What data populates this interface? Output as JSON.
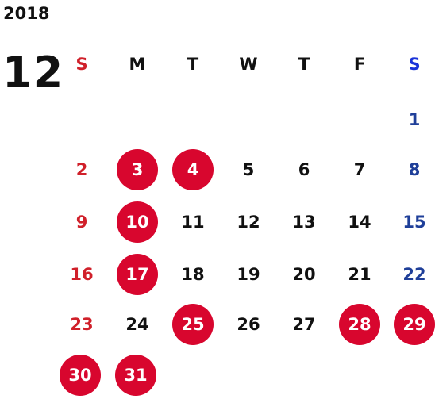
{
  "calendar": {
    "year": "2018",
    "month": "12",
    "weekdays": [
      "S",
      "M",
      "T",
      "W",
      "T",
      "F",
      "S"
    ],
    "weeks": [
      [
        "",
        "",
        "",
        "",
        "",
        "",
        "1"
      ],
      [
        "2",
        "3",
        "4",
        "5",
        "6",
        "7",
        "8"
      ],
      [
        "9",
        "10",
        "11",
        "12",
        "13",
        "14",
        "15"
      ],
      [
        "16",
        "17",
        "18",
        "19",
        "20",
        "21",
        "22"
      ],
      [
        "23",
        "24",
        "25",
        "26",
        "27",
        "28",
        "29"
      ],
      [
        "30",
        "31",
        "",
        "",
        "",
        "",
        ""
      ]
    ],
    "highlighted_days": [
      "3",
      "4",
      "10",
      "17",
      "25",
      "28",
      "29",
      "30",
      "31"
    ],
    "colors": {
      "text": "#111111",
      "sunday": "#d0202a",
      "saturday": "#1f3f99",
      "saturday_header": "#1a33d9",
      "highlight": "#d8062e"
    }
  }
}
